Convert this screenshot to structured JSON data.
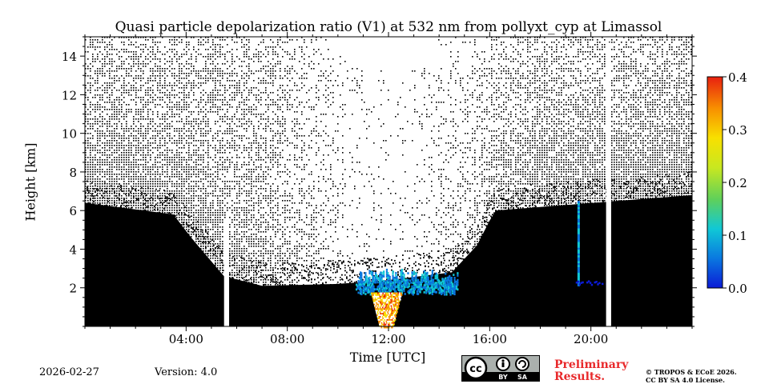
{
  "chart_data": {
    "type": "heatmap",
    "title": "Quasi particle depolarization ratio (V1) at 532 nm from pollyxt_cyp at Limassol",
    "xlabel": "Time [UTC]",
    "ylabel": "Height [km]",
    "xlim_hours": [
      0,
      24
    ],
    "ylim_km": [
      0,
      15
    ],
    "x_ticks": [
      {
        "hour": 4,
        "label": "04:00"
      },
      {
        "hour": 8,
        "label": "08:00"
      },
      {
        "hour": 12,
        "label": "12:00"
      },
      {
        "hour": 16,
        "label": "16:00"
      },
      {
        "hour": 20,
        "label": "20:00"
      }
    ],
    "y_ticks": [
      {
        "value": 2,
        "label": "2"
      },
      {
        "value": 4,
        "label": "4"
      },
      {
        "value": 6,
        "label": "6"
      },
      {
        "value": 8,
        "label": "8"
      },
      {
        "value": 10,
        "label": "10"
      },
      {
        "value": 12,
        "label": "12"
      },
      {
        "value": 14,
        "label": "14"
      }
    ],
    "colorbar": {
      "min": 0.0,
      "max": 0.4,
      "ticks": [
        {
          "value": 0.0,
          "label": "0.0"
        },
        {
          "value": 0.1,
          "label": "0.1"
        },
        {
          "value": 0.2,
          "label": "0.2"
        },
        {
          "value": 0.3,
          "label": "0.3"
        },
        {
          "value": 0.4,
          "label": "0.4"
        }
      ],
      "colors": [
        "#0b1bd6",
        "#0a78e0",
        "#10c8d6",
        "#5fd05a",
        "#c8e820",
        "#f8e000",
        "#f89000",
        "#e82010"
      ]
    },
    "regions": {
      "signal_floor_km": [
        {
          "hour": 0,
          "km": 6.4
        },
        {
          "hour": 3.5,
          "km": 5.8
        },
        {
          "hour": 4.2,
          "km": 4.6
        },
        {
          "hour": 5.5,
          "km": 2.6
        },
        {
          "hour": 7,
          "km": 2.1
        },
        {
          "hour": 10,
          "km": 2.2
        },
        {
          "hour": 12,
          "km": 2.4
        },
        {
          "hour": 14.5,
          "km": 2.8
        },
        {
          "hour": 15.5,
          "km": 4.2
        },
        {
          "hour": 16.2,
          "km": 6.0
        },
        {
          "hour": 24,
          "km": 6.8
        }
      ],
      "data_gaps_hours": [
        {
          "start": 5.5,
          "end": 5.7
        },
        {
          "start": 20.6,
          "end": 20.8
        }
      ],
      "aerosol_layer": {
        "start_hour": 10.7,
        "end_hour": 14.7,
        "bottom_km": 1.7,
        "top_km": 3.0,
        "depol_typical": 0.08
      },
      "cloud_plume": {
        "hour": 11.9,
        "bottom_km": 0,
        "top_km": 1.8,
        "depol_typical": 0.33
      },
      "cirrus_streak": {
        "hour": 19.5,
        "bottom_km": 2.2,
        "top_km": 6.5,
        "depol_typical": 0.06
      }
    }
  },
  "footer": {
    "date": "2026-02-27",
    "version": "Version: 4.0",
    "license_badge": {
      "cc": "cc",
      "by": "BY",
      "sa": "SA"
    },
    "preliminary_line1": "Preliminary",
    "preliminary_line2": "Results.",
    "copyright_line1": "© TROPOS & ECoE 2026.",
    "copyright_line2": "CC BY SA 4.0 License."
  }
}
